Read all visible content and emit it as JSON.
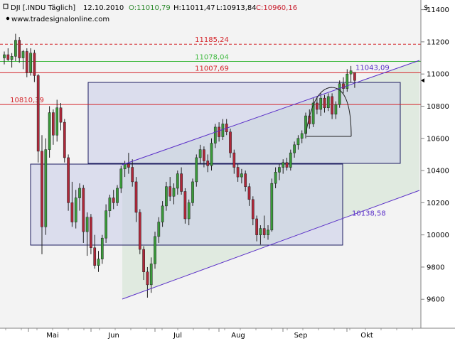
{
  "header": {
    "symbol": "DJI [.INDU Täglich]",
    "date": "12.10.2010",
    "open": "O:11010,79",
    "high": "H:11011,47",
    "low": "L:10913,84",
    "close": "C:10960,16",
    "watermark": "www.tradesignalonline.com"
  },
  "colors": {
    "plot_bg": "#f3f3f3",
    "up": "#3a9a3a",
    "down": "#b0283a",
    "channel": "#5a2fc8",
    "resistance": "#d4242a",
    "support_green": "#44bb44",
    "box_fill": "#c6cbe8",
    "box_edge": "#1c1c60"
  },
  "chart_data": {
    "type": "candlestick",
    "currency_label": "$",
    "ylim": [
      9420,
      11460
    ],
    "y_ticks": [
      9600,
      9800,
      10000,
      10200,
      10400,
      10600,
      10800,
      11000,
      11200,
      11400
    ],
    "x_labels": [
      "Mai",
      "Jun",
      "Jul",
      "Aug",
      "Sep",
      "Okt"
    ],
    "levels": [
      {
        "label": "11185,24",
        "value": 11185.24,
        "color": "#d4242a",
        "style": "dashed"
      },
      {
        "label": "11078,04",
        "value": 11078.04,
        "color": "#44bb44",
        "style": "solid"
      },
      {
        "label": "11007,69",
        "value": 11007.69,
        "color": "#d4242a",
        "style": "solid"
      },
      {
        "label": "10810,39",
        "value": 10810.39,
        "color": "#d4242a",
        "style": "solid"
      }
    ],
    "channel_labels": [
      {
        "label": "11043,09",
        "value": 11043.09
      },
      {
        "label": "10138,58",
        "value": 10138.58
      }
    ],
    "last_close": 10960.16,
    "candles": [
      [
        11100,
        11140,
        11060,
        11120
      ],
      [
        11120,
        11160,
        11080,
        11090
      ],
      [
        11090,
        11130,
        11040,
        11110
      ],
      [
        11110,
        11250,
        11080,
        11210
      ],
      [
        11210,
        11230,
        11070,
        11100
      ],
      [
        11100,
        11150,
        11030,
        11140
      ],
      [
        11140,
        11160,
        10980,
        11010
      ],
      [
        11010,
        11160,
        10990,
        11130
      ],
      [
        11130,
        11150,
        10950,
        10990
      ],
      [
        10990,
        11000,
        10450,
        10520
      ],
      [
        10520,
        10620,
        9880,
        10050
      ],
      [
        10050,
        10600,
        10000,
        10530
      ],
      [
        10530,
        10800,
        10480,
        10760
      ],
      [
        10760,
        10780,
        10560,
        10620
      ],
      [
        10620,
        10840,
        10580,
        10790
      ],
      [
        10790,
        10820,
        10650,
        10700
      ],
      [
        10700,
        10720,
        10450,
        10480
      ],
      [
        10480,
        10500,
        10150,
        10200
      ],
      [
        10200,
        10330,
        10050,
        10080
      ],
      [
        10080,
        10280,
        10040,
        10230
      ],
      [
        10230,
        10320,
        10150,
        10290
      ],
      [
        10290,
        10310,
        9950,
        10020
      ],
      [
        10020,
        10140,
        9870,
        10110
      ],
      [
        10110,
        10130,
        9880,
        9920
      ],
      [
        9920,
        10000,
        9790,
        9810
      ],
      [
        9810,
        9900,
        9770,
        9850
      ],
      [
        9850,
        10000,
        9820,
        9980
      ],
      [
        9980,
        10190,
        9950,
        10150
      ],
      [
        10150,
        10250,
        10110,
        10230
      ],
      [
        10230,
        10280,
        10160,
        10200
      ],
      [
        10200,
        10310,
        10180,
        10290
      ],
      [
        10290,
        10430,
        10260,
        10410
      ],
      [
        10410,
        10460,
        10360,
        10440
      ],
      [
        10440,
        10510,
        10380,
        10420
      ],
      [
        10420,
        10470,
        10300,
        10330
      ],
      [
        10330,
        10360,
        10080,
        10140
      ],
      [
        10140,
        10160,
        9880,
        9910
      ],
      [
        9910,
        9930,
        9720,
        9770
      ],
      [
        9770,
        9800,
        9610,
        9690
      ],
      [
        9690,
        9860,
        9640,
        9820
      ],
      [
        9820,
        10020,
        9790,
        9990
      ],
      [
        9990,
        10110,
        9950,
        10080
      ],
      [
        10080,
        10210,
        10050,
        10180
      ],
      [
        10180,
        10330,
        10150,
        10300
      ],
      [
        10300,
        10360,
        10210,
        10240
      ],
      [
        10240,
        10320,
        10190,
        10290
      ],
      [
        10290,
        10400,
        10250,
        10380
      ],
      [
        10380,
        10420,
        10250,
        10270
      ],
      [
        10270,
        10290,
        10070,
        10100
      ],
      [
        10100,
        10220,
        10060,
        10200
      ],
      [
        10200,
        10350,
        10180,
        10330
      ],
      [
        10330,
        10500,
        10300,
        10480
      ],
      [
        10480,
        10560,
        10440,
        10530
      ],
      [
        10530,
        10550,
        10420,
        10460
      ],
      [
        10460,
        10500,
        10390,
        10430
      ],
      [
        10430,
        10600,
        10400,
        10570
      ],
      [
        10570,
        10690,
        10540,
        10670
      ],
      [
        10670,
        10700,
        10580,
        10610
      ],
      [
        10610,
        10720,
        10590,
        10690
      ],
      [
        10690,
        10720,
        10620,
        10640
      ],
      [
        10640,
        10660,
        10480,
        10510
      ],
      [
        10510,
        10530,
        10380,
        10420
      ],
      [
        10420,
        10440,
        10330,
        10360
      ],
      [
        10360,
        10410,
        10320,
        10380
      ],
      [
        10380,
        10400,
        10270,
        10300
      ],
      [
        10300,
        10320,
        10180,
        10220
      ],
      [
        10220,
        10240,
        10060,
        10100
      ],
      [
        10100,
        10120,
        9960,
        10000
      ],
      [
        10000,
        10060,
        9940,
        10040
      ],
      [
        10040,
        10120,
        9980,
        10000
      ],
      [
        10000,
        10060,
        9970,
        10030
      ],
      [
        10030,
        10350,
        10020,
        10320
      ],
      [
        10320,
        10420,
        10290,
        10390
      ],
      [
        10390,
        10440,
        10340,
        10420
      ],
      [
        10420,
        10470,
        10380,
        10450
      ],
      [
        10450,
        10480,
        10400,
        10420
      ],
      [
        10420,
        10530,
        10400,
        10510
      ],
      [
        10510,
        10580,
        10480,
        10560
      ],
      [
        10560,
        10620,
        10530,
        10600
      ],
      [
        10600,
        10650,
        10570,
        10630
      ],
      [
        10630,
        10760,
        10600,
        10740
      ],
      [
        10740,
        10780,
        10660,
        10690
      ],
      [
        10690,
        10850,
        10670,
        10820
      ],
      [
        10820,
        10860,
        10750,
        10780
      ],
      [
        10780,
        10880,
        10740,
        10850
      ],
      [
        10850,
        10870,
        10760,
        10790
      ],
      [
        10790,
        10880,
        10770,
        10860
      ],
      [
        10860,
        10880,
        10720,
        10750
      ],
      [
        10750,
        10830,
        10720,
        10810
      ],
      [
        10810,
        10960,
        10790,
        10940
      ],
      [
        10940,
        10980,
        10880,
        10910
      ],
      [
        10910,
        11030,
        10890,
        11000
      ],
      [
        11000,
        11050,
        10950,
        11020
      ],
      [
        11010,
        11011,
        10914,
        10960
      ]
    ]
  }
}
